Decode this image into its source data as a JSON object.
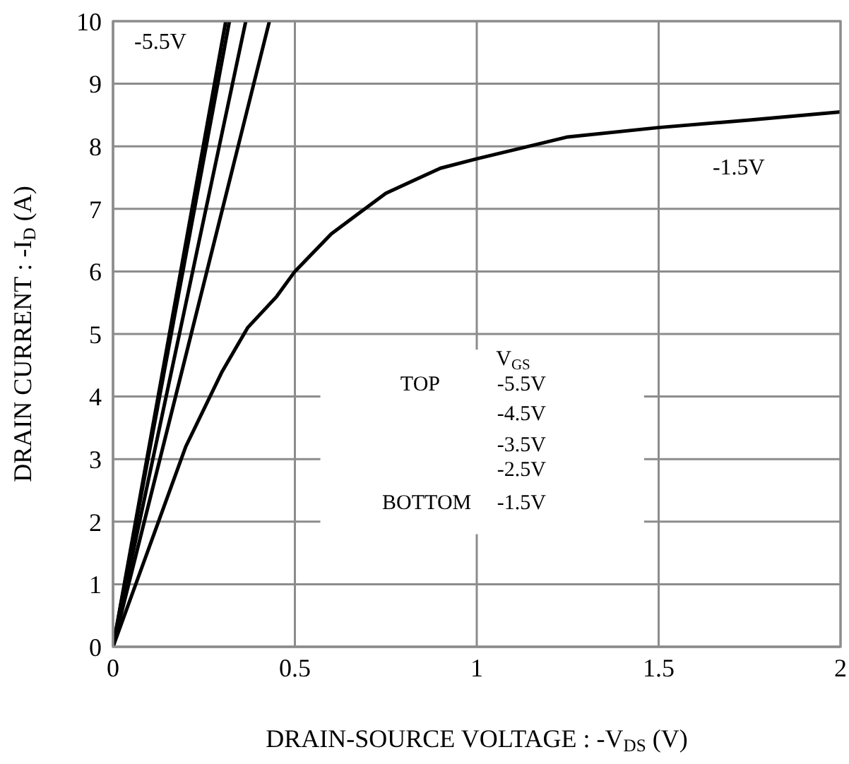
{
  "chart_data": {
    "type": "line",
    "xlabel": "DRAIN-SOURCE VOLTAGE : -V$_{DS}$ (V)",
    "ylabel": "DRAIN CURRENT : -I$_{D}$ (A)",
    "xlim": [
      0,
      2
    ],
    "xticks": [
      0,
      0.5,
      1,
      1.5,
      2
    ],
    "ylim": [
      0,
      10
    ],
    "yticks": [
      0,
      1,
      2,
      3,
      4,
      5,
      6,
      7,
      8,
      9,
      10
    ],
    "grid": true,
    "marker": "none",
    "line_style": "solid",
    "series": [
      {
        "color": "#000000",
        "x": [
          0,
          0.31
        ],
        "values": [
          0,
          10
        ]
      },
      {
        "color": "#000000",
        "x": [
          0,
          0.32
        ],
        "values": [
          0,
          10
        ]
      },
      {
        "color": "#000000",
        "x": [
          0,
          0.365
        ],
        "values": [
          0,
          10
        ]
      },
      {
        "color": "#000000",
        "x": [
          0,
          0.43
        ],
        "values": [
          0,
          10
        ]
      },
      {
        "color": "#000000",
        "x": [
          0,
          0.1,
          0.2,
          0.3,
          0.37,
          0.45,
          0.5,
          0.6,
          0.75,
          0.9,
          1,
          1.25,
          1.5,
          1.75,
          2
        ],
        "values": [
          0,
          1.6,
          3.2,
          4.4,
          5.1,
          5.6,
          6.0,
          6.6,
          7.25,
          7.65,
          7.8,
          8.15,
          8.3,
          8.42,
          8.55
        ]
      }
    ],
    "annotations": [
      "-5.5V",
      "-1.5V",
      "V$_{GS}$",
      "TOP",
      "-5.5V",
      "-4.5V",
      "-3.5V",
      "-2.5V",
      "BOTTOM",
      "-1.5V"
    ]
  }
}
